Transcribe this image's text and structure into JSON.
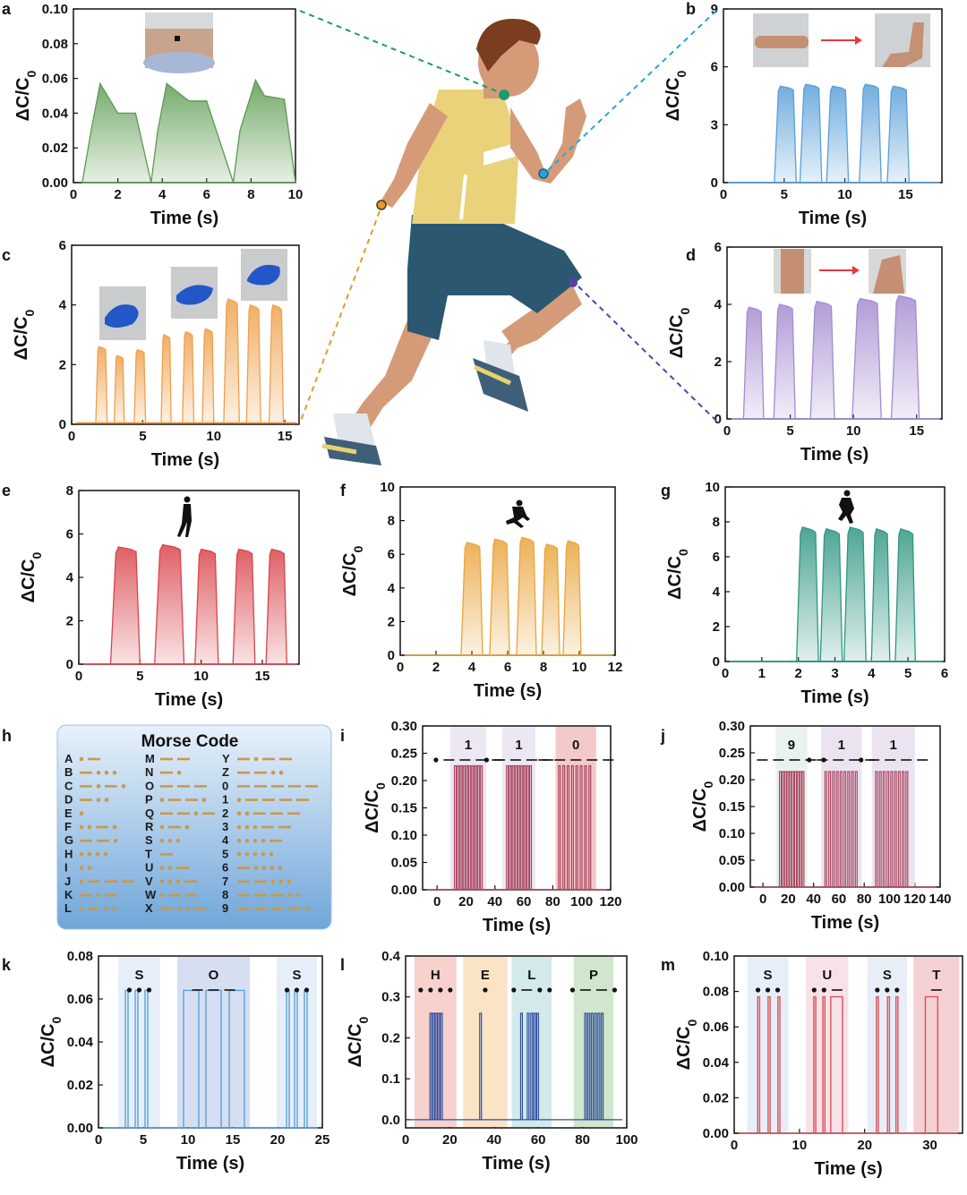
{
  "figure": {
    "morse_table": {
      "title": "Morse Code",
      "entries": [
        {
          "ch": "A",
          "code": ".-"
        },
        {
          "ch": "B",
          "code": "-..."
        },
        {
          "ch": "C",
          "code": "-.-."
        },
        {
          "ch": "D",
          "code": "-.."
        },
        {
          "ch": "E",
          "code": "."
        },
        {
          "ch": "F",
          "code": "..-."
        },
        {
          "ch": "G",
          "code": "--."
        },
        {
          "ch": "H",
          "code": "...."
        },
        {
          "ch": "I",
          "code": ".."
        },
        {
          "ch": "J",
          "code": ".---"
        },
        {
          "ch": "K",
          "code": "-.-"
        },
        {
          "ch": "L",
          "code": ".-.."
        },
        {
          "ch": "M",
          "code": "--"
        },
        {
          "ch": "N",
          "code": "-."
        },
        {
          "ch": "O",
          "code": "---"
        },
        {
          "ch": "P",
          "code": ".--."
        },
        {
          "ch": "Q",
          "code": "--.-"
        },
        {
          "ch": "R",
          "code": ".-."
        },
        {
          "ch": "S",
          "code": "..."
        },
        {
          "ch": "T",
          "code": "-"
        },
        {
          "ch": "U",
          "code": "..-"
        },
        {
          "ch": "V",
          "code": "...-"
        },
        {
          "ch": "W",
          "code": ".--"
        },
        {
          "ch": "X",
          "code": "-..-"
        },
        {
          "ch": "Y",
          "code": "-.--"
        },
        {
          "ch": "Z",
          "code": "--.."
        },
        {
          "ch": "0",
          "code": "-----"
        },
        {
          "ch": "1",
          "code": ".----"
        },
        {
          "ch": "2",
          "code": "..---"
        },
        {
          "ch": "3",
          "code": "...--"
        },
        {
          "ch": "4",
          "code": "....-"
        },
        {
          "ch": "5",
          "code": "....."
        },
        {
          "ch": "6",
          "code": "-...."
        },
        {
          "ch": "7",
          "code": "--..."
        },
        {
          "ch": "8",
          "code": "---.."
        },
        {
          "ch": "9",
          "code": "----."
        }
      ],
      "colors": {
        "box_top": "#e8f1fb",
        "box_bottom": "#6fa6d9",
        "mark": "#c9994a"
      }
    },
    "runner_markers": {
      "neck": "#1d9a6c",
      "elbow": "#2aa2d8",
      "hand": "#e39a2a",
      "knee": "#5b3fa6"
    }
  },
  "chart_data": [
    {
      "id": "a",
      "type": "area",
      "color": "#5a9a4f",
      "xlabel": "Time (s)",
      "ylabel": "ΔC/C0",
      "xlim": [
        0,
        10
      ],
      "ylim": [
        0,
        0.1
      ],
      "xticks": [
        0,
        2,
        4,
        6,
        8,
        10
      ],
      "yticks": [
        0.0,
        0.02,
        0.04,
        0.06,
        0.08,
        0.1
      ],
      "ytick_labels": [
        "0.00",
        "0.02",
        "0.04",
        "0.06",
        "0.08",
        "0.10"
      ],
      "x": [
        0.4,
        0.8,
        1.2,
        2.0,
        2.8,
        3.5,
        3.8,
        4.2,
        5.2,
        6.0,
        7.2,
        7.5,
        8.2,
        8.6,
        9.5,
        10.0
      ],
      "y": [
        0.0,
        0.03,
        0.057,
        0.04,
        0.04,
        0.0,
        0.03,
        0.057,
        0.047,
        0.047,
        0.0,
        0.03,
        0.059,
        0.05,
        0.048,
        0.0
      ],
      "grid": false
    },
    {
      "id": "b",
      "type": "area",
      "color": "#5a9fd8",
      "xlabel": "Time (s)",
      "ylabel": "ΔC/C0",
      "xlim": [
        0,
        18
      ],
      "ylim": [
        0,
        9
      ],
      "xticks": [
        0,
        5,
        10,
        15
      ],
      "yticks": [
        0,
        3,
        6,
        9
      ],
      "pulses": [
        {
          "s": 4.2,
          "e": 6.0,
          "h": 5.0
        },
        {
          "s": 6.3,
          "e": 8.1,
          "h": 5.1
        },
        {
          "s": 8.5,
          "e": 10.3,
          "h": 5.0
        },
        {
          "s": 11.2,
          "e": 13.0,
          "h": 5.1
        },
        {
          "s": 13.5,
          "e": 15.3,
          "h": 5.0
        }
      ],
      "baseline": 0.0,
      "grid": false
    },
    {
      "id": "c",
      "type": "area",
      "color": "#f0a04b",
      "xlabel": "Time (s)",
      "ylabel": "ΔC/C0",
      "xlim": [
        0,
        16
      ],
      "ylim": [
        0,
        6
      ],
      "xticks": [
        0,
        5,
        10,
        15
      ],
      "yticks": [
        0,
        2,
        4,
        6
      ],
      "pulses": [
        {
          "s": 1.7,
          "e": 2.5,
          "h": 2.6
        },
        {
          "s": 3.0,
          "e": 3.7,
          "h": 2.3
        },
        {
          "s": 4.4,
          "e": 5.2,
          "h": 2.5
        },
        {
          "s": 6.3,
          "e": 7.0,
          "h": 3.0
        },
        {
          "s": 7.8,
          "e": 8.6,
          "h": 3.1
        },
        {
          "s": 9.2,
          "e": 10.0,
          "h": 3.2
        },
        {
          "s": 10.7,
          "e": 11.8,
          "h": 4.2
        },
        {
          "s": 12.3,
          "e": 13.3,
          "h": 4.0
        },
        {
          "s": 13.9,
          "e": 14.9,
          "h": 4.0
        }
      ],
      "baseline": 0.05,
      "grid": false
    },
    {
      "id": "d",
      "type": "area",
      "color": "#a58bd0",
      "xlabel": "Time (s)",
      "ylabel": "ΔC/C0",
      "xlim": [
        0,
        17
      ],
      "ylim": [
        0,
        6
      ],
      "xticks": [
        0,
        5,
        10,
        15
      ],
      "yticks": [
        0,
        2,
        4,
        6
      ],
      "pulses": [
        {
          "s": 1.3,
          "e": 2.9,
          "h": 3.9
        },
        {
          "s": 3.7,
          "e": 5.4,
          "h": 4.0
        },
        {
          "s": 6.6,
          "e": 8.5,
          "h": 4.1
        },
        {
          "s": 9.9,
          "e": 12.2,
          "h": 4.2
        },
        {
          "s": 13.0,
          "e": 15.2,
          "h": 4.3
        }
      ],
      "baseline": 0.0,
      "grid": false
    },
    {
      "id": "e",
      "type": "area",
      "color": "#d9444b",
      "xlabel": "Time (s)",
      "ylabel": "ΔC/C0",
      "xlim": [
        0,
        18
      ],
      "ylim": [
        0,
        8
      ],
      "xticks": [
        0,
        5,
        10,
        15
      ],
      "yticks": [
        0,
        2,
        4,
        6,
        8
      ],
      "pulses": [
        {
          "s": 2.6,
          "e": 5.0,
          "h": 5.4
        },
        {
          "s": 6.2,
          "e": 8.6,
          "h": 5.5
        },
        {
          "s": 9.5,
          "e": 11.4,
          "h": 5.3
        },
        {
          "s": 12.6,
          "e": 14.4,
          "h": 5.3
        },
        {
          "s": 15.3,
          "e": 17.0,
          "h": 5.3
        }
      ],
      "baseline": 0.0,
      "grid": false
    },
    {
      "id": "f",
      "type": "area",
      "color": "#e9a43b",
      "xlabel": "Time (s)",
      "ylabel": "ΔC/C0",
      "xlim": [
        0,
        12
      ],
      "ylim": [
        0,
        10
      ],
      "xticks": [
        0,
        2,
        4,
        6,
        8,
        10,
        12
      ],
      "yticks": [
        0,
        2,
        4,
        6,
        8,
        10
      ],
      "pulses": [
        {
          "s": 3.4,
          "e": 4.6,
          "h": 6.7
        },
        {
          "s": 5.0,
          "e": 6.1,
          "h": 6.9
        },
        {
          "s": 6.5,
          "e": 7.6,
          "h": 7.0
        },
        {
          "s": 7.9,
          "e": 8.9,
          "h": 6.6
        },
        {
          "s": 9.1,
          "e": 10.1,
          "h": 6.8
        }
      ],
      "baseline": 0.0,
      "grid": false
    },
    {
      "id": "g",
      "type": "area",
      "color": "#2f9683",
      "xlabel": "Time (s)",
      "ylabel": "ΔC/C0",
      "xlim": [
        0,
        6
      ],
      "ylim": [
        0,
        10
      ],
      "xticks": [
        0,
        1,
        2,
        3,
        4,
        5,
        6
      ],
      "yticks": [
        0,
        2,
        4,
        6,
        8,
        10
      ],
      "pulses": [
        {
          "s": 1.95,
          "e": 2.55,
          "h": 7.7
        },
        {
          "s": 2.6,
          "e": 3.2,
          "h": 7.6
        },
        {
          "s": 3.25,
          "e": 3.85,
          "h": 7.7
        },
        {
          "s": 4.0,
          "e": 4.5,
          "h": 7.6
        },
        {
          "s": 4.65,
          "e": 5.2,
          "h": 7.6
        }
      ],
      "baseline": 0.0,
      "grid": false
    },
    {
      "id": "i",
      "type": "line",
      "color": "#a9465f",
      "xlabel": "Time (s)",
      "ylabel": "ΔC/C0",
      "xlim": [
        -10,
        120
      ],
      "ylim": [
        0,
        0.3
      ],
      "xticks": [
        0,
        20,
        40,
        60,
        80,
        100,
        120
      ],
      "yticks": [
        0,
        0.05,
        0.1,
        0.15,
        0.2,
        0.25,
        0.3
      ],
      "ytick_labels": [
        "0.00",
        "0.05",
        "0.10",
        "0.15",
        "0.20",
        "0.25",
        "0.30"
      ],
      "segments": [
        {
          "label": "1",
          "code": ".----",
          "x0": 9,
          "x1": 34,
          "band": "#ece7f3",
          "pulses": [
            12,
            14,
            16,
            18,
            20,
            22,
            24,
            26,
            28,
            30
          ]
        },
        {
          "label": "1",
          "code": ".----",
          "x0": 45,
          "x1": 68,
          "band": "#ece7f3",
          "pulses": [
            48,
            50,
            52,
            54,
            56,
            58,
            60,
            62,
            64
          ]
        },
        {
          "label": "0",
          "code": "-----",
          "x0": 82,
          "x1": 110,
          "band": "#f4c9c9",
          "pulses": [
            84,
            87,
            90,
            93,
            96,
            99,
            102,
            105
          ]
        }
      ],
      "pulse_height": 0.227,
      "pulse_width": 1.2,
      "grid": false
    },
    {
      "id": "j",
      "type": "line",
      "color": "#a9465f",
      "xlabel": "Time (s)",
      "ylabel": "ΔC/C0",
      "xlim": [
        -10,
        140
      ],
      "ylim": [
        0,
        0.3
      ],
      "xticks": [
        0,
        20,
        40,
        60,
        80,
        100,
        120,
        140
      ],
      "yticks": [
        0,
        0.05,
        0.1,
        0.15,
        0.2,
        0.25,
        0.3
      ],
      "ytick_labels": [
        "0.00",
        "0.05",
        "0.10",
        "0.15",
        "0.20",
        "0.25",
        "0.30"
      ],
      "segments": [
        {
          "label": "9",
          "code": "----.",
          "x0": 10,
          "x1": 35,
          "band": "#eaf2ee",
          "pulses": [
            13,
            15,
            17,
            19,
            21,
            23,
            25,
            27,
            29,
            31
          ]
        },
        {
          "label": "1",
          "code": ".----",
          "x0": 46,
          "x1": 78,
          "band": "#ebe3f1",
          "pulses": [
            49,
            52,
            55,
            58,
            61,
            64,
            67,
            70,
            73
          ]
        },
        {
          "label": "1",
          "code": ".----",
          "x0": 86,
          "x1": 120,
          "band": "#ebe3f1",
          "pulses": [
            89,
            92,
            95,
            98,
            101,
            104,
            107,
            110,
            113
          ]
        }
      ],
      "pulse_height": 0.215,
      "pulse_width": 1.4,
      "grid": false
    },
    {
      "id": "k",
      "type": "line",
      "color": "#5aa0d8",
      "xlabel": "Time (s)",
      "ylabel": "ΔC/C0",
      "xlim": [
        0,
        25
      ],
      "ylim": [
        0,
        0.08
      ],
      "xticks": [
        0,
        5,
        10,
        15,
        20,
        25
      ],
      "yticks": [
        0,
        0.02,
        0.04,
        0.06,
        0.08
      ],
      "ytick_labels": [
        "0.00",
        "0.02",
        "0.04",
        "0.06",
        "0.08"
      ],
      "segments": [
        {
          "label": "S",
          "code": "...",
          "x0": 2.2,
          "x1": 6.9,
          "band": "#e6eff9",
          "rects": [
            [
              3.0,
              3.3
            ],
            [
              4.1,
              4.4
            ],
            [
              5.2,
              5.5
            ]
          ]
        },
        {
          "label": "O",
          "code": "---",
          "x0": 8.8,
          "x1": 16.9,
          "band": "#d6dff2",
          "rects": [
            [
              9.5,
              11.2
            ],
            [
              12.0,
              13.7
            ],
            [
              14.6,
              16.3
            ]
          ]
        },
        {
          "label": "S",
          "code": "...",
          "x0": 19.9,
          "x1": 24.4,
          "band": "#e6eff9",
          "rects": [
            [
              21.0,
              21.3
            ],
            [
              21.9,
              22.2
            ],
            [
              23.0,
              23.3
            ]
          ]
        }
      ],
      "pulse_height": 0.064,
      "grid": false
    },
    {
      "id": "l",
      "type": "line",
      "color": "#2f4f9e",
      "xlabel": "Time (s)",
      "ylabel": "ΔC/C0",
      "xlim": [
        0,
        100
      ],
      "ylim": [
        -0.02,
        0.4
      ],
      "xticks": [
        0,
        20,
        40,
        60,
        80,
        100
      ],
      "yticks": [
        0,
        0.1,
        0.2,
        0.3,
        0.4
      ],
      "ytick_labels": [
        "0.0",
        "0.1",
        "0.2",
        "0.3",
        "0.4"
      ],
      "segments": [
        {
          "label": "H",
          "code": "....",
          "x0": 4,
          "x1": 23,
          "band": "#f7d2cc",
          "pulses": [
            11,
            12.2,
            13.4,
            14.6,
            15.8
          ]
        },
        {
          "label": "E",
          "code": ".",
          "x0": 26,
          "x1": 46,
          "band": "#fbe3c6",
          "pulses": [
            33.5
          ]
        },
        {
          "label": "L",
          "code": ".-..",
          "x0": 48,
          "x1": 66,
          "band": "#d3e9ea",
          "pulses": [
            52,
            55,
            56.6,
            58,
            59.3
          ]
        },
        {
          "label": "P",
          "code": ".--.",
          "x0": 76,
          "x1": 94,
          "band": "#d0e6cd",
          "pulses": [
            81,
            82.5,
            84,
            85.5,
            87,
            88.5
          ]
        }
      ],
      "pulse_height": 0.26,
      "pulse_width": 0.8,
      "grid": false
    },
    {
      "id": "m",
      "type": "line",
      "color": "#d6555b",
      "xlabel": "Time (s)",
      "ylabel": "ΔC/C0",
      "xlim": [
        0,
        35
      ],
      "ylim": [
        0,
        0.1
      ],
      "xticks": [
        0,
        10,
        20,
        30
      ],
      "yticks": [
        0,
        0.02,
        0.04,
        0.06,
        0.08,
        0.1
      ],
      "ytick_labels": [
        "0.00",
        "0.02",
        "0.04",
        "0.06",
        "0.08",
        "0.10"
      ],
      "segments": [
        {
          "label": "S",
          "code": "...",
          "x0": 2,
          "x1": 8.3,
          "band": "#e7eef8",
          "rects": [
            [
              3.6,
              3.9
            ],
            [
              5.2,
              5.5
            ],
            [
              6.7,
              7.0
            ]
          ]
        },
        {
          "label": "U",
          "code": "..-",
          "x0": 11,
          "x1": 17.5,
          "band": "#f8e1e8",
          "rects": [
            [
              12.2,
              12.5
            ],
            [
              13.6,
              13.9
            ],
            [
              14.8,
              16.6
            ]
          ]
        },
        {
          "label": "S",
          "code": "...",
          "x0": 20.4,
          "x1": 26.5,
          "band": "#e7eef8",
          "rects": [
            [
              21.8,
              22.1
            ],
            [
              23.5,
              23.8
            ],
            [
              24.8,
              25.1
            ]
          ]
        },
        {
          "label": "T",
          "code": "-",
          "x0": 27.5,
          "x1": 34.5,
          "band": "#f5d1d3",
          "rects": [
            [
              29.3,
              31.2
            ]
          ]
        }
      ],
      "pulse_height": 0.077,
      "grid": false
    }
  ]
}
